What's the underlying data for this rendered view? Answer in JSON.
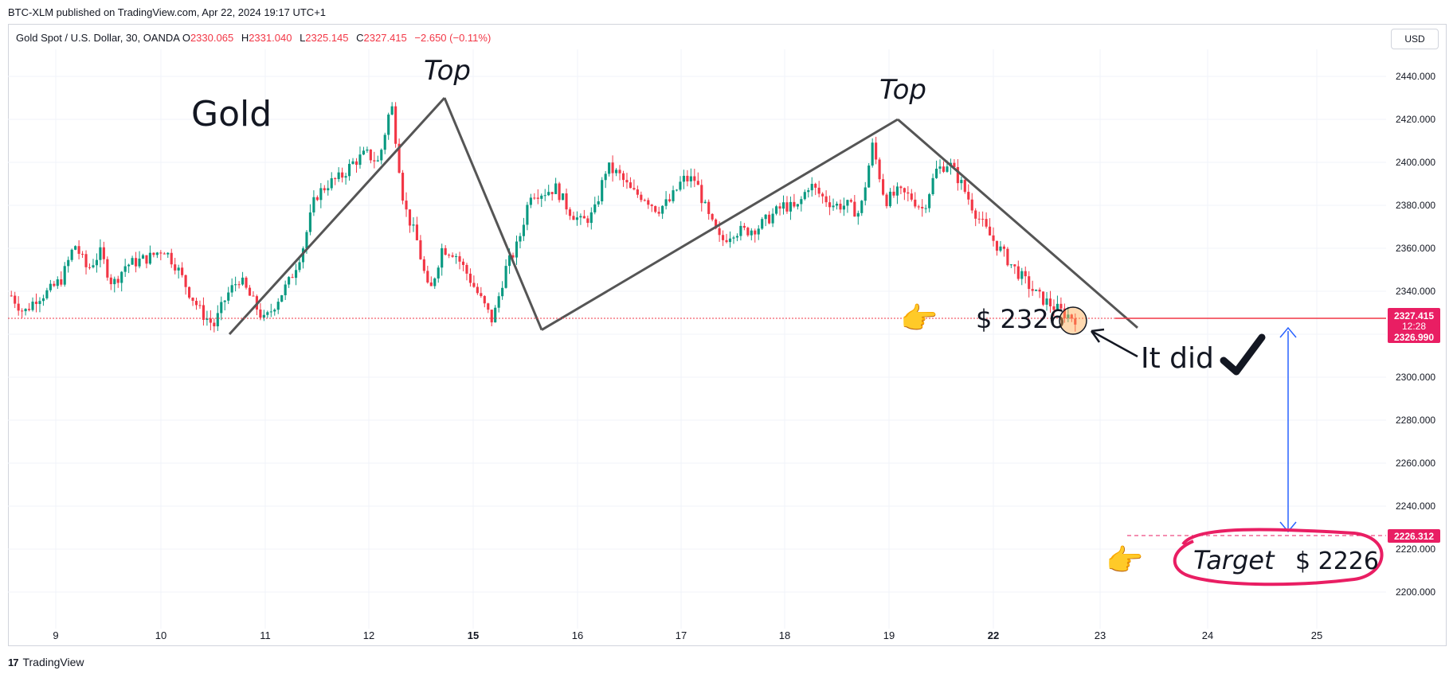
{
  "publish_line": "BTC-XLM published on TradingView.com, Apr 22, 2024 19:17 UTC+1",
  "legend": {
    "symbol": "Gold Spot / U.S. Dollar, 30, OANDA",
    "o_label": "O",
    "o_value": "2330.065",
    "h_label": "H",
    "h_value": "2331.040",
    "l_label": "L",
    "l_value": "2325.145",
    "c_label": "C",
    "c_value": "2327.415",
    "change": "−2.650 (−0.11%)"
  },
  "currency_button": "USD",
  "footer": {
    "logo": "17",
    "brand": "TradingView"
  },
  "colors": {
    "up": "#089981",
    "down": "#f23645",
    "pattern_line": "#555555",
    "target_arrow": "#2962ff",
    "target_circle": "#e91e63",
    "hand": "#f5c842",
    "grid": "#f0f3fa"
  },
  "chart_data": {
    "type": "candlestick",
    "title": "",
    "ylim": [
      2190,
      2450
    ],
    "y_ticks": [
      "2440.000",
      "2420.000",
      "2400.000",
      "2380.000",
      "2360.000",
      "2340.000",
      "2320.000",
      "2300.000",
      "2280.000",
      "2260.000",
      "2240.000",
      "2220.000",
      "2200.000"
    ],
    "x_ticks": [
      {
        "label": "9",
        "bold": false
      },
      {
        "label": "10",
        "bold": false
      },
      {
        "label": "11",
        "bold": false
      },
      {
        "label": "12",
        "bold": false
      },
      {
        "label": "15",
        "bold": true
      },
      {
        "label": "16",
        "bold": false
      },
      {
        "label": "17",
        "bold": false
      },
      {
        "label": "18",
        "bold": false
      },
      {
        "label": "19",
        "bold": false
      },
      {
        "label": "22",
        "bold": true
      },
      {
        "label": "23",
        "bold": false
      },
      {
        "label": "24",
        "bold": false
      },
      {
        "label": "25",
        "bold": false
      }
    ],
    "price_path": [
      2338,
      2330,
      2337,
      2340,
      2346,
      2362,
      2350,
      2358,
      2343,
      2352,
      2354,
      2356,
      2360,
      2352,
      2340,
      2330,
      2324,
      2338,
      2346,
      2336,
      2326,
      2336,
      2345,
      2360,
      2384,
      2390,
      2393,
      2400,
      2404,
      2400,
      2428,
      2380,
      2364,
      2338,
      2360,
      2358,
      2348,
      2337,
      2326,
      2350,
      2362,
      2386,
      2386,
      2388,
      2378,
      2372,
      2376,
      2398,
      2394,
      2386,
      2384,
      2378,
      2382,
      2392,
      2392,
      2375,
      2363,
      2368,
      2368,
      2370,
      2375,
      2380,
      2378,
      2390,
      2384,
      2380,
      2380,
      2376,
      2408,
      2382,
      2386,
      2384,
      2378,
      2396,
      2400,
      2390,
      2378,
      2368,
      2360,
      2352,
      2345,
      2338,
      2334,
      2330,
      2327.415
    ],
    "price_ranges": {
      "first": "Apr 9",
      "last": "Apr 22"
    },
    "current_price": "2327.415",
    "countdown": "12:28",
    "bid_price": "2326.990",
    "target_price": "2226.312",
    "current_price_value": 2327.415,
    "target_price_value": 2226.312,
    "pattern_points": [
      {
        "x_day": 10.63,
        "y": 2320
      },
      {
        "x_day": 12.7,
        "y": 2430
      },
      {
        "x_day": 13.7,
        "y": 2322
      },
      {
        "x_day": 16.1,
        "y": 2420
      },
      {
        "x_day": 16.6,
        "y": 2324
      }
    ],
    "annotations": {
      "name": "Gold",
      "top1": "Top",
      "top2": "Top",
      "neckline_label": "$ 2326",
      "it_did": "It did",
      "target_word": "Target",
      "target_value": "$ 2226"
    }
  }
}
